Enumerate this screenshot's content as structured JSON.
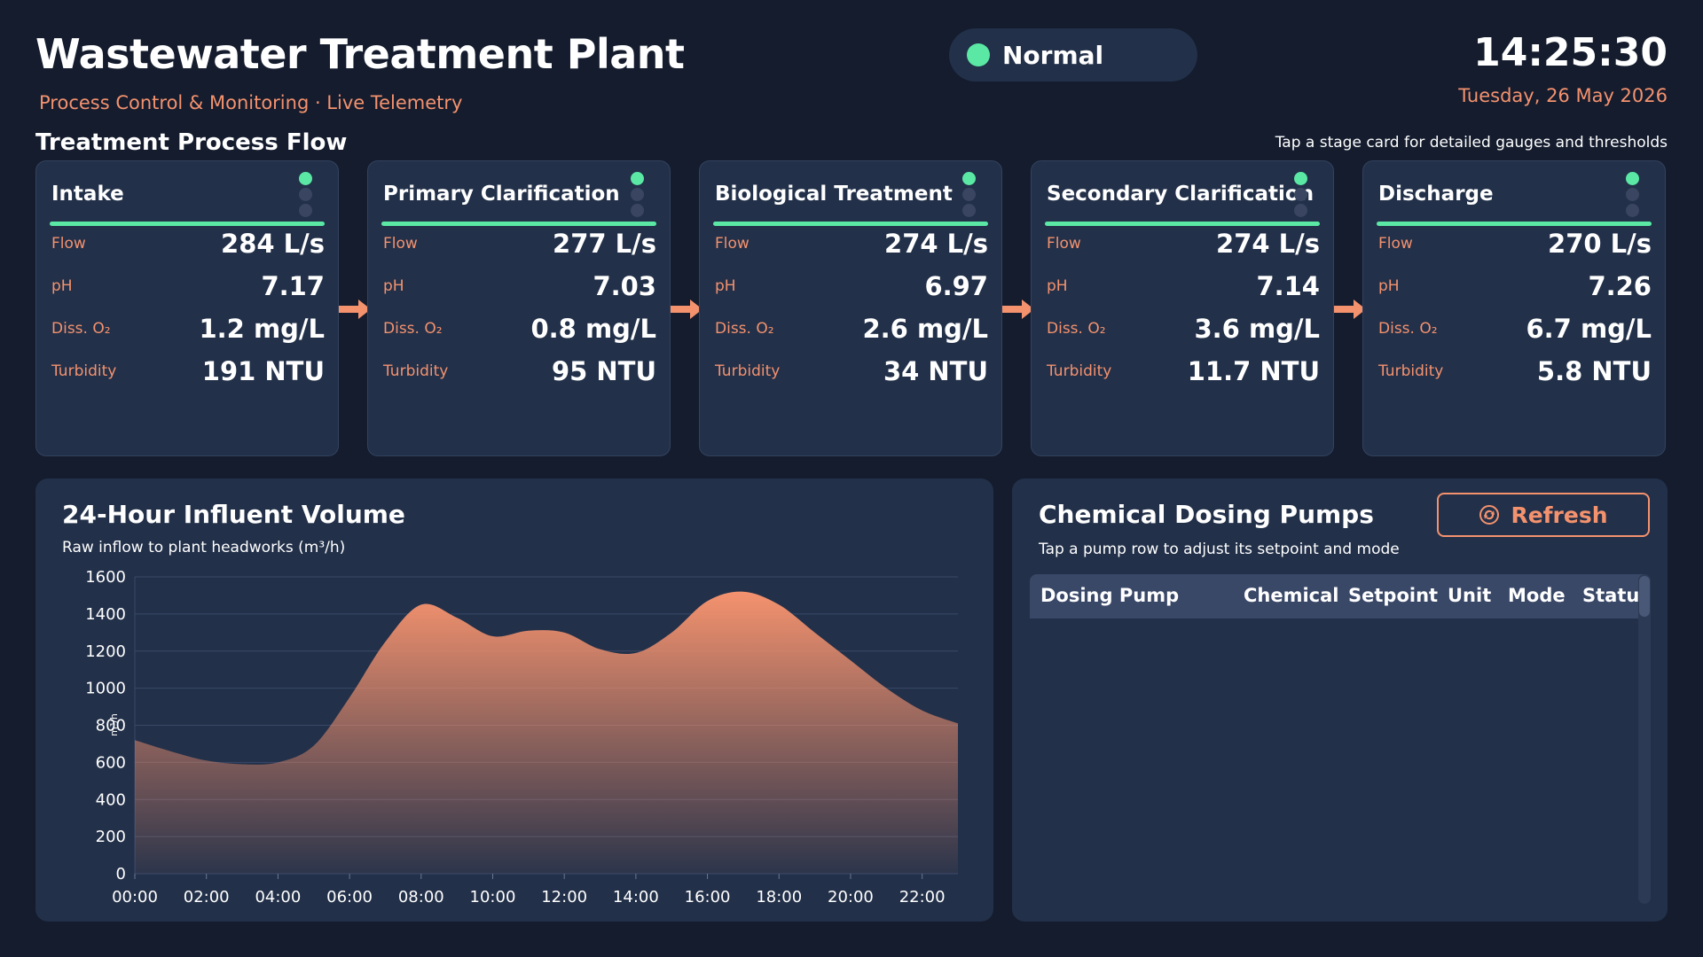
{
  "header": {
    "title": "Wastewater Treatment Plant",
    "subtitle": "Process Control & Monitoring · Live Telemetry",
    "status": "Normal",
    "status_color": "#5ae8a4",
    "time": "14:25:30",
    "date": "Tuesday, 26 May 2026"
  },
  "flow": {
    "title": "Treatment Process Flow",
    "hint": "Tap a stage card for detailed gauges and thresholds",
    "labels": {
      "flow": "Flow",
      "ph": "pH",
      "do": "Diss. O₂",
      "turbidity": "Turbidity"
    },
    "stages": [
      {
        "name": "Intake",
        "flow": "284 L/s",
        "ph": "7.17",
        "do": "1.2 mg/L",
        "turbidity": "191 NTU"
      },
      {
        "name": "Primary Clarification",
        "flow": "277 L/s",
        "ph": "7.03",
        "do": "0.8 mg/L",
        "turbidity": "95 NTU"
      },
      {
        "name": "Biological Treatment",
        "flow": "274 L/s",
        "ph": "6.97",
        "do": "2.6 mg/L",
        "turbidity": "34 NTU"
      },
      {
        "name": "Secondary Clarification",
        "flow": "274 L/s",
        "ph": "7.14",
        "do": "3.6 mg/L",
        "turbidity": "11.7 NTU"
      },
      {
        "name": "Discharge",
        "flow": "270 L/s",
        "ph": "7.26",
        "do": "6.7 mg/L",
        "turbidity": "5.8 NTU"
      }
    ]
  },
  "influent": {
    "title": "24-Hour Influent Volume",
    "subtitle": "Raw inflow to plant headworks (m³/h)"
  },
  "chart_data": {
    "type": "area",
    "title": "24-Hour Influent Volume",
    "subtitle": "Raw inflow to plant headworks (m³/h)",
    "ylabel": "m³/h",
    "xlabel": "",
    "ylim": [
      0,
      1600
    ],
    "yticks": [
      0,
      200,
      400,
      600,
      800,
      1000,
      1200,
      1400,
      1600
    ],
    "xlim": [
      0,
      23
    ],
    "xtick_labels": [
      "00:00",
      "02:00",
      "04:00",
      "06:00",
      "08:00",
      "10:00",
      "12:00",
      "14:00",
      "16:00",
      "18:00",
      "20:00",
      "22:00"
    ],
    "x": [
      0,
      1,
      2,
      3,
      4,
      5,
      6,
      7,
      8,
      9,
      10,
      11,
      12,
      13,
      14,
      15,
      16,
      17,
      18,
      19,
      20,
      21,
      22,
      23
    ],
    "values": [
      720,
      660,
      610,
      590,
      600,
      690,
      950,
      1250,
      1450,
      1380,
      1280,
      1310,
      1300,
      1210,
      1190,
      1300,
      1470,
      1520,
      1450,
      1300,
      1150,
      1000,
      880,
      810
    ],
    "grid": true,
    "fill_color": "#f4926e"
  },
  "pumps": {
    "title": "Chemical Dosing Pumps",
    "subtitle": "Tap a pump row to adjust its setpoint and mode",
    "refresh_label": "Refresh",
    "columns": [
      "Dosing Pump",
      "Chemical",
      "Setpoint",
      "Unit",
      "Mode",
      "Status"
    ]
  }
}
